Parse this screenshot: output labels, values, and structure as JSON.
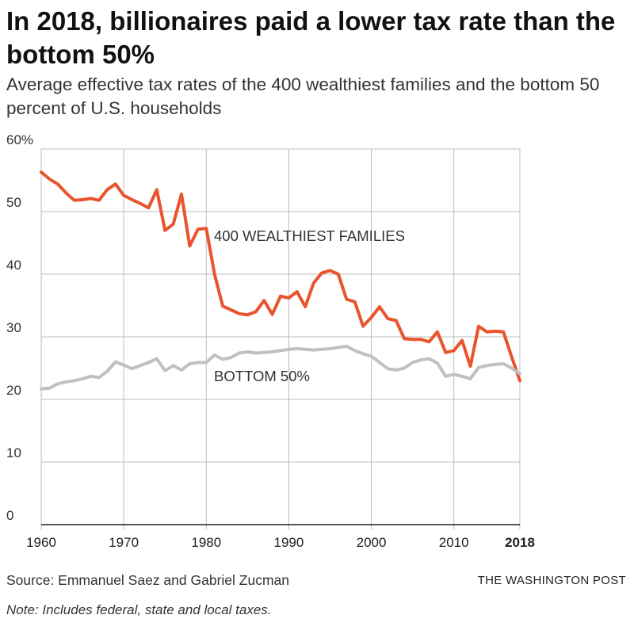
{
  "header": {
    "title": "In 2018, billionaires paid a lower tax rate than the bottom 50%",
    "subtitle": "Average effective tax rates of the 400 wealthiest families and the bottom 50 percent of U.S. households"
  },
  "footer": {
    "source": "Source: Emmanuel Saez and Gabriel Zucman",
    "credit": "THE WASHINGTON POST",
    "note": "Note: Includes federal, state and local taxes."
  },
  "chart_data": {
    "type": "line",
    "xlim": [
      1960,
      2018
    ],
    "ylim": [
      0,
      60
    ],
    "grid": true,
    "x_ticks": [
      1960,
      1970,
      1980,
      1990,
      2000,
      2010,
      2018
    ],
    "x_tick_labels": [
      "1960",
      "1970",
      "1980",
      "1990",
      "2000",
      "2010",
      "2018"
    ],
    "y_ticks": [
      0,
      10,
      20,
      30,
      40,
      50,
      60
    ],
    "y_tick_labels": [
      "0",
      "10",
      "20",
      "30",
      "40",
      "50",
      "60%"
    ],
    "colors": {
      "top400": "#e8542d",
      "bottom50": "#c0c0c0",
      "grid": "#bdbdbd",
      "axis": "#222222"
    },
    "x": [
      1960,
      1961,
      1962,
      1963,
      1964,
      1965,
      1966,
      1967,
      1968,
      1969,
      1970,
      1971,
      1972,
      1973,
      1974,
      1975,
      1976,
      1977,
      1978,
      1979,
      1980,
      1981,
      1982,
      1983,
      1984,
      1985,
      1986,
      1987,
      1988,
      1989,
      1990,
      1991,
      1992,
      1993,
      1994,
      1995,
      1996,
      1997,
      1998,
      1999,
      2000,
      2001,
      2002,
      2003,
      2004,
      2005,
      2006,
      2007,
      2008,
      2009,
      2010,
      2011,
      2012,
      2013,
      2014,
      2015,
      2016,
      2017,
      2018
    ],
    "series": [
      {
        "key": "top400",
        "name": "400 WEALTHIEST FAMILIES",
        "values": [
          56.3,
          55.2,
          54.4,
          53.0,
          51.8,
          51.9,
          52.1,
          51.8,
          53.5,
          54.4,
          52.6,
          51.9,
          51.3,
          50.6,
          53.5,
          47.0,
          48.0,
          52.8,
          44.5,
          47.2,
          47.3,
          40.0,
          34.9,
          34.3,
          33.7,
          33.5,
          34.0,
          35.8,
          33.6,
          36.5,
          36.2,
          37.2,
          34.8,
          38.6,
          40.2,
          40.6,
          40.0,
          36.0,
          35.6,
          31.7,
          33.1,
          34.8,
          32.9,
          32.6,
          29.7,
          29.6,
          29.6,
          29.2,
          30.8,
          27.5,
          27.8,
          29.4,
          25.3,
          31.7,
          30.8,
          30.9,
          30.8,
          26.8,
          23.0
        ]
      },
      {
        "key": "bottom50",
        "name": "BOTTOM 50%",
        "values": [
          21.7,
          21.8,
          22.5,
          22.8,
          23.0,
          23.3,
          23.7,
          23.5,
          24.5,
          26.0,
          25.5,
          24.9,
          25.4,
          25.9,
          26.5,
          24.6,
          25.4,
          24.7,
          25.7,
          25.9,
          25.9,
          27.1,
          26.4,
          26.7,
          27.4,
          27.6,
          27.4,
          27.5,
          27.6,
          27.8,
          28.0,
          28.1,
          28.0,
          27.9,
          28.0,
          28.1,
          28.3,
          28.5,
          27.8,
          27.3,
          26.9,
          25.9,
          24.9,
          24.7,
          25.0,
          25.9,
          26.3,
          26.5,
          25.8,
          23.7,
          24.0,
          23.7,
          23.3,
          25.1,
          25.4,
          25.6,
          25.7,
          25.0,
          24.1
        ]
      }
    ]
  }
}
